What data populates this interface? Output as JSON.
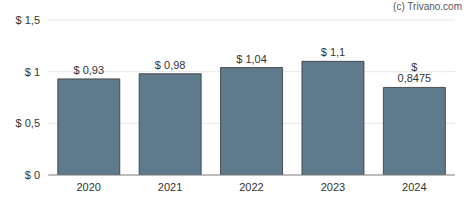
{
  "chart_data": {
    "type": "bar",
    "annotations": [
      "(c) Trivano.com"
    ],
    "categories": [
      "2020",
      "2021",
      "2022",
      "2023",
      "2024"
    ],
    "values": [
      0.93,
      0.98,
      1.04,
      1.1,
      0.8475
    ],
    "value_labels": [
      "$ 0,93",
      "$ 0,98",
      "$ 1,04",
      "$ 1,1",
      "$ 0,8475"
    ],
    "data_labels": true,
    "color": "#5f7a8c",
    "ylim": [
      0,
      1.5
    ],
    "yticks": [
      {
        "value": 0,
        "label": "$ 0"
      },
      {
        "value": 0.5,
        "label": "$ 0,5"
      },
      {
        "value": 1,
        "label": "$ 1"
      },
      {
        "value": 1.5,
        "label": "$ 1,5"
      }
    ],
    "grid": true
  }
}
